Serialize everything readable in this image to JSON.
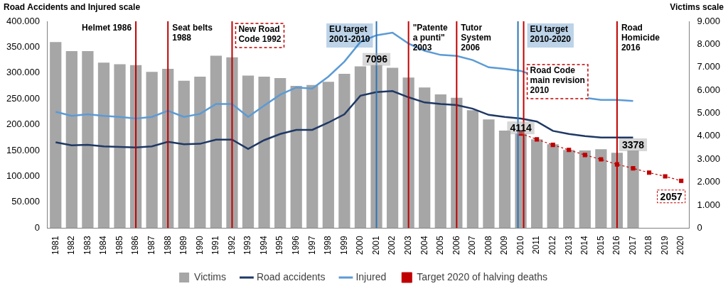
{
  "chart_data": {
    "type": "bar",
    "ylabel": "Road Accidents and Injured scale",
    "y2label": "Victims scale",
    "categories": [
      "1981",
      "1982",
      "1983",
      "1984",
      "1985",
      "1986",
      "1987",
      "1988",
      "1989",
      "1990",
      "1991",
      "1992",
      "1993",
      "1994",
      "1995",
      "1996",
      "1997",
      "1998",
      "1999",
      "2000",
      "2001",
      "2002",
      "2003",
      "2004",
      "2005",
      "2006",
      "2007",
      "2008",
      "2009",
      "2010",
      "2011",
      "2012",
      "2013",
      "2014",
      "2015",
      "2016",
      "2017",
      "2018",
      "2019",
      "2020"
    ],
    "ylim": [
      0,
      400000
    ],
    "yticks": [
      0,
      {
        "value": 50000,
        "label": "50.000"
      },
      {
        "value": 100000,
        "label": "100.000"
      },
      {
        "value": 150000,
        "label": "150.000"
      },
      {
        "value": 200000,
        "label": "200.000"
      },
      {
        "value": 250000,
        "label": "250.000"
      },
      {
        "value": 300000,
        "label": "300.000"
      },
      {
        "value": 350000,
        "label": "350.000"
      },
      {
        "value": 400000,
        "label": "400.000"
      }
    ],
    "y2lim": [
      0,
      9000
    ],
    "y2ticks": [
      0,
      {
        "value": 1000,
        "label": "1.000"
      },
      {
        "value": 2000,
        "label": "2.000"
      },
      {
        "value": 3000,
        "label": "3.000"
      },
      {
        "value": 4000,
        "label": "4.000"
      },
      {
        "value": 5000,
        "label": "5.000"
      },
      {
        "value": 6000,
        "label": "6.000"
      },
      {
        "value": 7000,
        "label": "7.000"
      },
      {
        "value": 8000,
        "label": "8.000"
      },
      {
        "value": 9000,
        "label": "9.000"
      }
    ],
    "grid": false,
    "legend": "bottom",
    "series": [
      {
        "name": "Victims",
        "type": "bar",
        "axis": "y2",
        "color": "#a6a6a6",
        "values": [
          8100,
          7700,
          7700,
          7200,
          7130,
          7090,
          6800,
          6930,
          6410,
          6590,
          7500,
          7430,
          6640,
          6590,
          6530,
          6190,
          6230,
          6370,
          6710,
          7040,
          7096,
          6980,
          6550,
          6120,
          5820,
          5670,
          5130,
          4730,
          4240,
          4114,
          3860,
          3650,
          3400,
          3380,
          3430,
          3280,
          3378,
          null,
          null,
          null
        ],
        "value_labels": [
          null,
          null,
          null,
          null,
          null,
          null,
          null,
          null,
          null,
          null,
          null,
          null,
          null,
          null,
          null,
          null,
          null,
          null,
          null,
          null,
          "7096",
          null,
          null,
          null,
          null,
          null,
          null,
          null,
          null,
          "4114",
          null,
          null,
          null,
          null,
          null,
          null,
          "3378",
          null,
          null,
          null
        ]
      },
      {
        "name": "Road accidents",
        "type": "line",
        "color": "#1f3864",
        "marker": "none",
        "line_style": "solid",
        "values": [
          166000,
          160000,
          161000,
          158000,
          157000,
          156000,
          158000,
          167000,
          162000,
          163000,
          171000,
          171000,
          153000,
          170000,
          182000,
          190000,
          190000,
          204000,
          220000,
          256000,
          263000,
          265000,
          253000,
          243000,
          240000,
          238000,
          231000,
          219000,
          215000,
          212000,
          206000,
          188000,
          182000,
          178000,
          175000,
          175000,
          175000,
          null,
          null,
          null
        ]
      },
      {
        "name": "Injured",
        "type": "line",
        "color": "#5b9bd5",
        "marker": "none",
        "line_style": "solid",
        "values": [
          225000,
          217000,
          220000,
          217000,
          215000,
          212000,
          215000,
          227000,
          215000,
          221000,
          240000,
          240000,
          215000,
          237000,
          258000,
          272000,
          270000,
          293000,
          322000,
          360000,
          373000,
          378000,
          357000,
          343000,
          335000,
          333000,
          325000,
          311000,
          308000,
          304000,
          293000,
          266000,
          258000,
          252000,
          248000,
          248000,
          246000,
          null,
          null,
          null
        ]
      },
      {
        "name": "Target 2020 of halving deaths",
        "type": "line",
        "axis": "y2",
        "color": "#c00000",
        "marker": "square",
        "line_style": "dashed",
        "values": [
          null,
          null,
          null,
          null,
          null,
          null,
          null,
          null,
          null,
          null,
          null,
          null,
          null,
          null,
          null,
          null,
          null,
          null,
          null,
          null,
          null,
          null,
          null,
          null,
          null,
          null,
          null,
          null,
          null,
          4114,
          3860,
          3620,
          3400,
          3180,
          2990,
          2770,
          2600,
          2410,
          2250,
          2057
        ],
        "value_labels": [
          null,
          null,
          null,
          null,
          null,
          null,
          null,
          null,
          null,
          null,
          null,
          null,
          null,
          null,
          null,
          null,
          null,
          null,
          null,
          null,
          null,
          null,
          null,
          null,
          null,
          null,
          null,
          null,
          null,
          null,
          null,
          null,
          null,
          null,
          null,
          null,
          null,
          null,
          null,
          "2057"
        ]
      }
    ],
    "annotations": [
      {
        "text": [
          "Helmet 1986"
        ],
        "x": "1986",
        "color": "#c00000"
      },
      {
        "text": [
          "Seat belts",
          "1988"
        ],
        "x": "1988",
        "color": "#c00000"
      },
      {
        "text": [
          "New Road",
          "Code 1992"
        ],
        "x": "1992",
        "color": "#c00000",
        "line_style": "dashed"
      },
      {
        "text": [
          "EU target",
          "2001-2010"
        ],
        "x": "2001",
        "color": "#2e75b6",
        "line_style": "solid"
      },
      {
        "text": [
          "\"Patente",
          "a punti\"",
          "2003"
        ],
        "x": "2003",
        "color": "#c00000"
      },
      {
        "text": [
          "Tutor",
          "System",
          "2006"
        ],
        "x": "2006",
        "color": "#c00000"
      },
      {
        "text": [
          "EU target",
          "2010-2020"
        ],
        "x": "2010",
        "color": "#2e75b6",
        "line_style": "solid"
      },
      {
        "text": [
          "Road Code",
          "main revision",
          "2010"
        ],
        "x": "2010",
        "color": "#c00000",
        "line_style": "dashed"
      },
      {
        "text": [
          "Road",
          "Homicide",
          "2016"
        ],
        "x": "2016",
        "color": "#c00000"
      }
    ]
  }
}
